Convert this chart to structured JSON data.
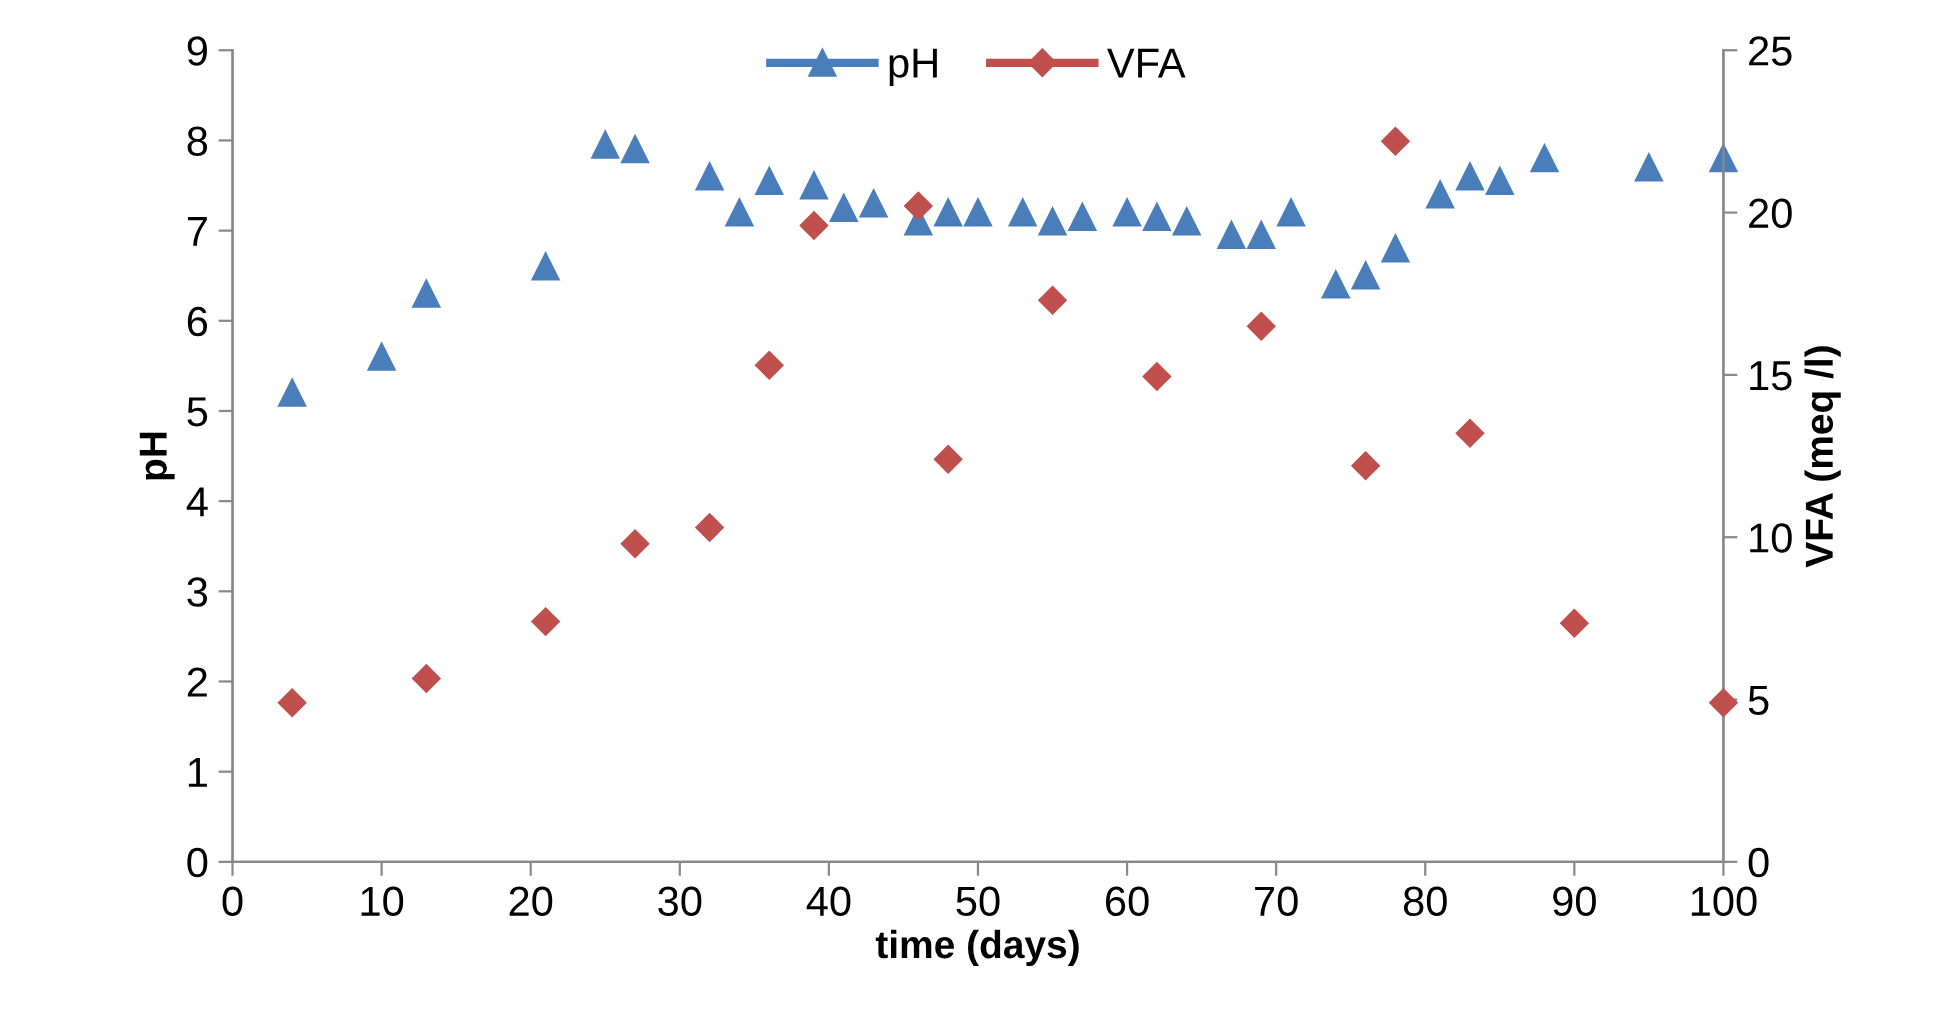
{
  "chart_data": {
    "type": "scatter",
    "xlabel": "time (days)",
    "ylabel": "pH",
    "y2label": "VFA (meq /l)",
    "xlim": [
      0,
      100
    ],
    "xticks": [
      0,
      10,
      20,
      30,
      40,
      50,
      60,
      70,
      80,
      90,
      100
    ],
    "ylim": [
      0,
      9
    ],
    "yticks": [
      0,
      1,
      2,
      3,
      4,
      5,
      6,
      7,
      8,
      9
    ],
    "y2lim": [
      0,
      25
    ],
    "y2ticks": [
      0,
      5,
      10,
      15,
      20,
      25
    ],
    "grid": false,
    "legend": "top",
    "series": [
      {
        "name": "pH",
        "color": "#4a7ebb",
        "marker": "triangle",
        "x": [
          4,
          10,
          13,
          21,
          25,
          27,
          32,
          34,
          36,
          39,
          41,
          43,
          46,
          48,
          50,
          53,
          55,
          57,
          60,
          62,
          64,
          67,
          69,
          71,
          74,
          76,
          78,
          81,
          83,
          85,
          88,
          95,
          100
        ],
        "values": [
          5.2,
          5.6,
          6.3,
          6.6,
          7.95,
          7.9,
          7.6,
          7.2,
          7.55,
          7.5,
          7.25,
          7.3,
          7.1,
          7.2,
          7.2,
          7.2,
          7.1,
          7.15,
          7.2,
          7.15,
          7.1,
          6.95,
          6.95,
          7.2,
          6.4,
          6.5,
          6.8,
          7.4,
          7.6,
          7.55,
          7.8,
          7.7,
          7.8
        ]
      },
      {
        "name": "VFA",
        "color": "#c0504d",
        "marker": "diamond",
        "axis": "y2",
        "x": [
          4,
          13,
          21,
          27,
          32,
          36,
          39,
          46,
          48,
          55,
          62,
          69,
          76,
          78,
          83,
          90,
          100
        ],
        "values": [
          4.9,
          5.65,
          7.4,
          9.8,
          10.3,
          15.3,
          19.6,
          20.2,
          12.4,
          17.3,
          14.95,
          16.5,
          12.2,
          22.2,
          13.2,
          7.35,
          4.9
        ]
      }
    ]
  }
}
